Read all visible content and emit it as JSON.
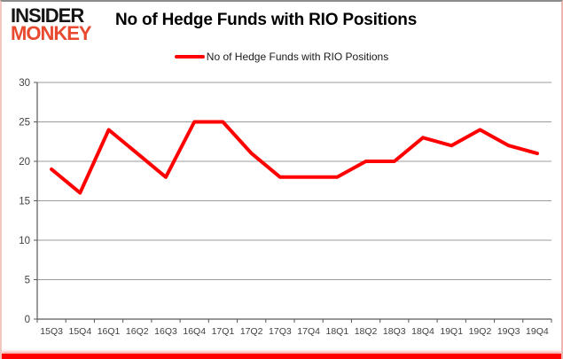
{
  "logo": {
    "line1": "INSIDER",
    "line2": "MONKEY"
  },
  "header": {
    "title": "No of Hedge Funds with RIO Positions"
  },
  "legend": {
    "label": "No of Hedge Funds with RIO Positions"
  },
  "colors": {
    "series_line": "#ff0000",
    "gridline": "#9b9b9b",
    "axis": "#595959",
    "tick_label": "#404040",
    "logo_primary": "#151515",
    "logo_accent": "#e8492f",
    "title_text": "#000000"
  },
  "chart_data": {
    "type": "line",
    "title": "No of Hedge Funds with RIO Positions",
    "categories": [
      "15Q3",
      "15Q4",
      "16Q1",
      "16Q2",
      "16Q3",
      "16Q4",
      "17Q1",
      "17Q2",
      "17Q3",
      "17Q4",
      "18Q1",
      "18Q2",
      "18Q3",
      "18Q4",
      "19Q1",
      "19Q2",
      "19Q3",
      "19Q4"
    ],
    "series": [
      {
        "name": "No of Hedge Funds with RIO Positions",
        "color": "#ff0000",
        "values": [
          19,
          16,
          24,
          21,
          18,
          25,
          25,
          21,
          18,
          18,
          18,
          20,
          20,
          23,
          22,
          24,
          22,
          21
        ]
      }
    ],
    "xlabel": "",
    "ylabel": "",
    "ylim": [
      0,
      30
    ],
    "yticks": [
      0,
      5,
      10,
      15,
      20,
      25,
      30
    ],
    "grid": "horizontal",
    "legend_position": "top-center"
  }
}
